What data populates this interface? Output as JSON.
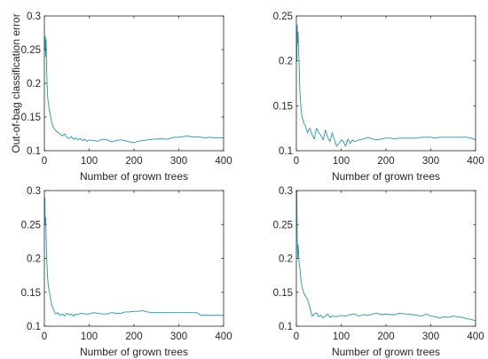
{
  "chart_data": [
    {
      "type": "line",
      "xlabel": "Number of grown trees",
      "ylabel": "Out-of-bag classification error",
      "xlim": [
        0,
        400
      ],
      "ylim": [
        0.1,
        0.3
      ],
      "xticks": [
        0,
        100,
        200,
        300,
        400
      ],
      "yticks": [
        0.1,
        0.15,
        0.2,
        0.25,
        0.3
      ],
      "ytick_labels": [
        "0.1",
        "0.15",
        "0.2",
        "0.25",
        "0.3"
      ],
      "grid": false,
      "series": [
        {
          "color": "#1f96b0",
          "x": [
            1,
            2,
            3,
            4,
            5,
            6,
            7,
            8,
            10,
            12,
            14,
            17,
            20,
            25,
            30,
            35,
            40,
            45,
            50,
            55,
            60,
            65,
            70,
            75,
            80,
            85,
            90,
            95,
            100,
            110,
            120,
            130,
            140,
            150,
            160,
            170,
            180,
            190,
            200,
            210,
            220,
            230,
            240,
            250,
            260,
            270,
            280,
            290,
            300,
            310,
            320,
            330,
            340,
            350,
            360,
            370,
            380,
            390,
            400
          ],
          "y": [
            0.25,
            0.27,
            0.24,
            0.265,
            0.22,
            0.2,
            0.185,
            0.175,
            0.165,
            0.158,
            0.15,
            0.14,
            0.135,
            0.13,
            0.127,
            0.125,
            0.122,
            0.125,
            0.12,
            0.118,
            0.121,
            0.117,
            0.119,
            0.116,
            0.118,
            0.115,
            0.117,
            0.114,
            0.116,
            0.115,
            0.114,
            0.117,
            0.116,
            0.113,
            0.115,
            0.116,
            0.115,
            0.113,
            0.112,
            0.114,
            0.115,
            0.116,
            0.117,
            0.117,
            0.118,
            0.117,
            0.118,
            0.12,
            0.12,
            0.121,
            0.122,
            0.12,
            0.121,
            0.12,
            0.119,
            0.12,
            0.119,
            0.119,
            0.119
          ]
        }
      ]
    },
    {
      "type": "line",
      "xlabel": "Number of grown trees",
      "ylabel": "",
      "xlim": [
        0,
        400
      ],
      "ylim": [
        0.1,
        0.25
      ],
      "xticks": [
        0,
        100,
        200,
        300,
        400
      ],
      "yticks": [
        0.1,
        0.15,
        0.2,
        0.25
      ],
      "ytick_labels": [
        "0.1",
        "0.15",
        "0.2",
        "0.25"
      ],
      "grid": false,
      "series": [
        {
          "color": "#1f96b0",
          "x": [
            1,
            2,
            3,
            4,
            5,
            6,
            7,
            8,
            10,
            12,
            14,
            17,
            20,
            25,
            30,
            35,
            40,
            45,
            50,
            55,
            60,
            65,
            70,
            75,
            80,
            85,
            90,
            95,
            100,
            105,
            110,
            115,
            120,
            125,
            130,
            140,
            150,
            160,
            170,
            180,
            190,
            200,
            210,
            220,
            230,
            240,
            250,
            260,
            270,
            280,
            290,
            300,
            310,
            320,
            330,
            340,
            350,
            360,
            370,
            380,
            390,
            400
          ],
          "y": [
            0.2,
            0.24,
            0.22,
            0.232,
            0.21,
            0.2,
            0.18,
            0.165,
            0.15,
            0.14,
            0.135,
            0.13,
            0.128,
            0.12,
            0.125,
            0.118,
            0.113,
            0.125,
            0.12,
            0.117,
            0.112,
            0.123,
            0.115,
            0.11,
            0.12,
            0.112,
            0.105,
            0.108,
            0.112,
            0.11,
            0.105,
            0.113,
            0.108,
            0.112,
            0.11,
            0.112,
            0.113,
            0.115,
            0.113,
            0.112,
            0.113,
            0.114,
            0.114,
            0.113,
            0.114,
            0.114,
            0.114,
            0.114,
            0.114,
            0.115,
            0.115,
            0.115,
            0.114,
            0.115,
            0.115,
            0.115,
            0.115,
            0.115,
            0.115,
            0.115,
            0.114,
            0.112
          ]
        }
      ]
    },
    {
      "type": "line",
      "xlabel": "Number of grown trees",
      "ylabel": "",
      "xlim": [
        0,
        400
      ],
      "ylim": [
        0.1,
        0.3
      ],
      "xticks": [
        0,
        100,
        200,
        300,
        400
      ],
      "yticks": [
        0.1,
        0.15,
        0.2,
        0.25,
        0.3
      ],
      "ytick_labels": [
        "0.1",
        "0.15",
        "0.2",
        "0.25",
        "0.3"
      ],
      "grid": false,
      "series": [
        {
          "color": "#1f96b0",
          "x": [
            1,
            2,
            3,
            4,
            5,
            6,
            7,
            8,
            10,
            12,
            14,
            17,
            20,
            25,
            30,
            35,
            40,
            45,
            50,
            55,
            60,
            65,
            70,
            75,
            80,
            90,
            100,
            110,
            120,
            130,
            140,
            150,
            160,
            170,
            180,
            190,
            200,
            210,
            220,
            230,
            240,
            250,
            260,
            270,
            280,
            290,
            300,
            310,
            320,
            330,
            340,
            350,
            360,
            370,
            380,
            390,
            400
          ],
          "y": [
            0.29,
            0.25,
            0.26,
            0.23,
            0.2,
            0.19,
            0.175,
            0.165,
            0.155,
            0.148,
            0.14,
            0.13,
            0.125,
            0.118,
            0.12,
            0.116,
            0.118,
            0.115,
            0.119,
            0.117,
            0.118,
            0.115,
            0.118,
            0.117,
            0.119,
            0.118,
            0.118,
            0.12,
            0.119,
            0.118,
            0.118,
            0.12,
            0.119,
            0.119,
            0.121,
            0.121,
            0.122,
            0.122,
            0.123,
            0.121,
            0.12,
            0.12,
            0.12,
            0.12,
            0.12,
            0.12,
            0.12,
            0.12,
            0.12,
            0.12,
            0.12,
            0.116,
            0.116,
            0.116,
            0.116,
            0.116,
            0.116
          ]
        }
      ]
    },
    {
      "type": "line",
      "xlabel": "Number of grown trees",
      "ylabel": "",
      "xlim": [
        0,
        400
      ],
      "ylim": [
        0.1,
        0.3
      ],
      "xticks": [
        0,
        100,
        200,
        300,
        400
      ],
      "yticks": [
        0.1,
        0.15,
        0.2,
        0.25,
        0.3
      ],
      "ytick_labels": [
        "0.1",
        "0.15",
        "0.2",
        "0.25",
        "0.3"
      ],
      "grid": false,
      "series": [
        {
          "color": "#1f96b0",
          "x": [
            1,
            2,
            3,
            4,
            5,
            6,
            7,
            8,
            10,
            12,
            14,
            17,
            20,
            25,
            30,
            35,
            40,
            45,
            50,
            55,
            60,
            65,
            70,
            75,
            80,
            90,
            100,
            110,
            120,
            130,
            140,
            150,
            160,
            170,
            180,
            190,
            200,
            210,
            220,
            230,
            240,
            250,
            260,
            270,
            280,
            290,
            300,
            310,
            320,
            330,
            340,
            350,
            360,
            370,
            380,
            390,
            400
          ],
          "y": [
            0.3,
            0.23,
            0.2,
            0.22,
            0.21,
            0.195,
            0.19,
            0.185,
            0.17,
            0.16,
            0.155,
            0.148,
            0.145,
            0.14,
            0.128,
            0.115,
            0.118,
            0.12,
            0.114,
            0.116,
            0.112,
            0.115,
            0.118,
            0.113,
            0.115,
            0.114,
            0.116,
            0.115,
            0.117,
            0.118,
            0.115,
            0.117,
            0.116,
            0.118,
            0.119,
            0.117,
            0.118,
            0.117,
            0.117,
            0.119,
            0.118,
            0.118,
            0.117,
            0.116,
            0.115,
            0.118,
            0.115,
            0.114,
            0.112,
            0.114,
            0.113,
            0.115,
            0.114,
            0.113,
            0.111,
            0.11,
            0.108
          ]
        }
      ]
    }
  ]
}
